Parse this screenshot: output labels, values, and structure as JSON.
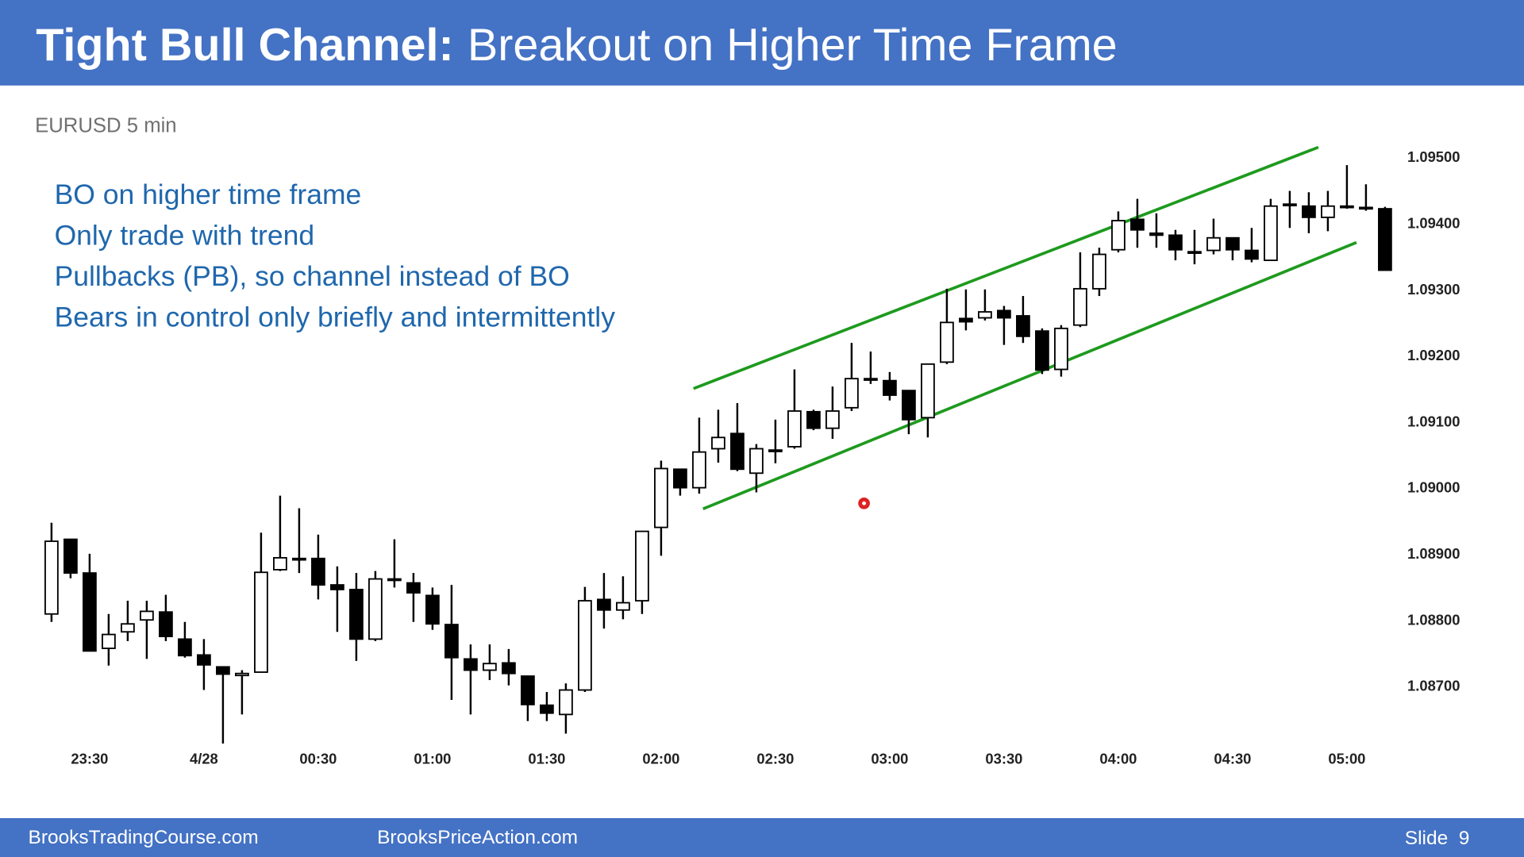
{
  "header": {
    "title_bold": "Tight Bull Channel:",
    "title_rest": "Breakout on Higher Time Frame"
  },
  "footer": {
    "left": "BrooksTradingCourse.com",
    "middle": "BrooksPriceAction.com",
    "slide": "Slide  9"
  },
  "chart_data": {
    "type": "candlestick",
    "title": "EURUSD 5 min",
    "annotations": [
      "BO on higher time frame",
      "Only trade with trend",
      "Pullbacks (PB), so channel instead of BO",
      "Bears in control only briefly and intermittently"
    ],
    "categories": [
      null,
      null,
      "23:30",
      null,
      null,
      null,
      null,
      null,
      "4/28",
      null,
      null,
      null,
      null,
      null,
      "00:30",
      null,
      null,
      null,
      null,
      null,
      "01:00",
      null,
      null,
      null,
      null,
      null,
      "01:30",
      null,
      null,
      null,
      null,
      null,
      "02:00",
      null,
      null,
      null,
      null,
      null,
      "02:30",
      null,
      null,
      null,
      null,
      null,
      "03:00",
      null,
      null,
      null,
      null,
      null,
      "03:30",
      null,
      null,
      null,
      null,
      null,
      "04:00",
      null,
      null,
      null,
      null,
      null,
      "04:30",
      null,
      null,
      null,
      null,
      null,
      "05:00",
      null,
      null
    ],
    "open": [
      1.08809,
      1.08922,
      1.08871,
      1.08757,
      1.08782,
      1.088,
      1.08812,
      1.08771,
      1.08747,
      1.08729,
      1.08716,
      1.08721,
      1.08876,
      1.08891,
      1.08893,
      1.08853,
      1.08846,
      1.08771,
      1.08862,
      1.08856,
      1.08837,
      1.08793,
      1.08741,
      1.08724,
      1.08735,
      1.08715,
      1.08671,
      1.08657,
      1.08694,
      1.08831,
      1.08815,
      1.08829,
      1.0894,
      1.09028,
      1.09,
      1.09059,
      1.09082,
      1.09022,
      1.09056,
      1.09062,
      1.09115,
      1.0909,
      1.09121,
      1.09165,
      1.09162,
      1.09147,
      1.09106,
      1.0919,
      1.09256,
      1.09257,
      1.09268,
      1.0926,
      1.09237,
      1.09179,
      1.09246,
      1.09301,
      1.0936,
      1.09406,
      1.09385,
      1.09382,
      1.09357,
      1.09359,
      1.09378,
      1.09359,
      1.09344,
      1.09429,
      1.09426,
      1.09409,
      1.09425,
      1.09424,
      1.09422
    ],
    "high": [
      1.08947,
      1.08922,
      1.089,
      1.08809,
      1.08829,
      1.08829,
      1.08838,
      1.08797,
      1.08771,
      1.08729,
      1.08724,
      1.08932,
      1.08988,
      1.08969,
      1.08929,
      1.08881,
      1.08871,
      1.08874,
      1.08922,
      1.08871,
      1.08849,
      1.08853,
      1.08763,
      1.08763,
      1.08756,
      1.08715,
      1.08691,
      1.08704,
      1.0885,
      1.08871,
      1.08866,
      1.08934,
      1.09041,
      1.09028,
      1.09106,
      1.09118,
      1.09128,
      1.09066,
      1.09103,
      1.09179,
      1.09118,
      1.09153,
      1.09219,
      1.09206,
      1.09175,
      1.09147,
      1.09187,
      1.09301,
      1.093,
      1.093,
      1.09275,
      1.0929,
      1.09241,
      1.09246,
      1.09356,
      1.09363,
      1.09418,
      1.09437,
      1.09415,
      1.0939,
      1.0939,
      1.09407,
      1.09378,
      1.09393,
      1.09437,
      1.09449,
      1.09447,
      1.09449,
      1.09488,
      1.09459,
      1.09425
    ],
    "low": [
      1.08797,
      1.08863,
      1.08753,
      1.08731,
      1.08768,
      1.08741,
      1.08768,
      1.08743,
      1.08694,
      1.08613,
      1.08657,
      1.08721,
      1.08874,
      1.08871,
      1.08831,
      1.08782,
      1.08738,
      1.08768,
      1.08849,
      1.08797,
      1.08785,
      1.08679,
      1.08657,
      1.08709,
      1.08701,
      1.08647,
      1.08647,
      1.08628,
      1.08691,
      1.08787,
      1.08801,
      1.08809,
      1.08897,
      1.08988,
      1.08991,
      1.09038,
      1.09025,
      1.08993,
      1.09037,
      1.09059,
      1.09087,
      1.09074,
      1.09116,
      1.09157,
      1.09132,
      1.09081,
      1.09076,
      1.09187,
      1.09238,
      1.09253,
      1.09216,
      1.09219,
      1.09172,
      1.09168,
      1.09243,
      1.0929,
      1.09356,
      1.09363,
      1.09363,
      1.09344,
      1.09338,
      1.09353,
      1.09344,
      1.09341,
      1.09344,
      1.09393,
      1.09385,
      1.09388,
      1.09422,
      1.09419,
      1.09329
    ],
    "close": [
      1.08919,
      1.08871,
      1.08753,
      1.08778,
      1.08794,
      1.08813,
      1.08775,
      1.08746,
      1.08732,
      1.08718,
      1.08719,
      1.08872,
      1.08894,
      1.08893,
      1.08853,
      1.08846,
      1.08771,
      1.08862,
      1.0886,
      1.08841,
      1.08794,
      1.08743,
      1.08724,
      1.08734,
      1.08719,
      1.08672,
      1.08659,
      1.08694,
      1.08829,
      1.08815,
      1.08826,
      1.08934,
      1.09029,
      1.09,
      1.09054,
      1.09076,
      1.09028,
      1.09059,
      1.09057,
      1.09116,
      1.0909,
      1.09116,
      1.09165,
      1.09163,
      1.0914,
      1.09103,
      1.09187,
      1.0925,
      1.09251,
      1.09266,
      1.09257,
      1.09229,
      1.09178,
      1.09241,
      1.09301,
      1.09353,
      1.09404,
      1.0939,
      1.09382,
      1.0936,
      1.09356,
      1.09378,
      1.0936,
      1.09346,
      1.09426,
      1.09428,
      1.09409,
      1.09426,
      1.09426,
      1.09422,
      1.09329
    ],
    "up_color": "#ffffff",
    "down_color": "#000000",
    "outline_color": "#000000",
    "trendlines": [
      {
        "x": [
          33.7,
          66.5
        ],
        "y": [
          1.0915,
          1.09515
        ],
        "color": "#1e9a1e"
      },
      {
        "x": [
          34.2,
          68.5
        ],
        "y": [
          1.08968,
          1.09371
        ],
        "color": "#1e9a1e"
      }
    ],
    "ylim": [
      1.08606,
      1.09532
    ],
    "yticks": [
      {
        "value": 1.087,
        "label": "1.08700"
      },
      {
        "value": 1.088,
        "label": "1.08800"
      },
      {
        "value": 1.089,
        "label": "1.08900"
      },
      {
        "value": 1.09,
        "label": "1.09000"
      },
      {
        "value": 1.091,
        "label": "1.09100"
      },
      {
        "value": 1.092,
        "label": "1.09200"
      },
      {
        "value": 1.093,
        "label": "1.09300"
      },
      {
        "value": 1.094,
        "label": "1.09400"
      },
      {
        "value": 1.095,
        "label": "1.09500"
      }
    ],
    "grid": false
  }
}
